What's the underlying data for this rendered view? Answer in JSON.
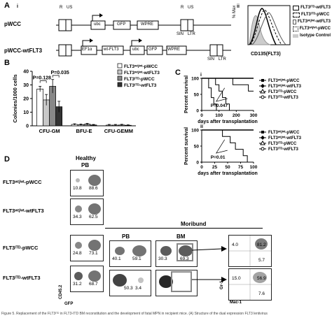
{
  "panelA": {
    "letter": "A",
    "sub_i": "i",
    "sub_ii": "ii",
    "construct1_name": "pWCC",
    "construct2_name": "pWCC-wtFLT3",
    "labels": {
      "R": "R",
      "US": "US",
      "ubc": "ubc",
      "GFP": "GFP",
      "WPRE": "WPRE",
      "SIN": "SIN",
      "LTR": "LTR",
      "EF1a": "EF1α",
      "wtFLT3": "wt-FLT3"
    },
    "hist_ylabel": "% Max",
    "hist_xlabel": "CD135(FLT3)",
    "hist_ticks": [
      "10⁰",
      "10¹",
      "10²",
      "10³",
      "10⁴"
    ],
    "legend": [
      "FLT3ᴵᵀᴰ-wtFLT3",
      "FLT3ᴵᵀᴰ-pWCC",
      "FLT3ʷᵗ/ʷᵗ-wtFLT3",
      "FLT3ʷᵗ/ʷᵗ-pWCC",
      "Isotype Control"
    ]
  },
  "panelB": {
    "letter": "B",
    "chart_data": {
      "type": "bar",
      "categories": [
        "CFU-GM",
        "BFU-E",
        "CFU-GEMM"
      ],
      "series": [
        {
          "name": "FLT3ʷᵗ/ʷᵗ-pWCC",
          "values": [
            27,
            1,
            0.5
          ],
          "errors": [
            2,
            0.5,
            0.5
          ],
          "color": "#ffffff"
        },
        {
          "name": "FLT3ʷᵗ/ʷᵗ-wtFLT3",
          "values": [
            19,
            0.8,
            0.5
          ],
          "errors": [
            4,
            0.5,
            0.5
          ],
          "color": "#c8c8c8"
        },
        {
          "name": "FLT3ᴵᵀᴰ-pWCC",
          "values": [
            29,
            1.2,
            0.6
          ],
          "errors": [
            5,
            0.6,
            0.5
          ],
          "color": "#888888"
        },
        {
          "name": "FLT3ᴵᵀᴰ-wtFLT3",
          "values": [
            14,
            0.6,
            0.4
          ],
          "errors": [
            4,
            0.4,
            0.3
          ],
          "color": "#333333"
        }
      ],
      "ylabel": "Colonies/1000 cells",
      "ylim": [
        0,
        40
      ],
      "yticks": [
        "0",
        "10",
        "20",
        "30",
        "40"
      ],
      "pvalues": [
        "P=0.128",
        "P=0.035"
      ]
    }
  },
  "panelC": {
    "letter": "C",
    "sub_i": "i",
    "sub_ii": "ii",
    "chart_data": [
      {
        "type": "line",
        "xlabel": "days after transplantation",
        "ylabel": "Percent survival",
        "xlim": [
          0,
          300
        ],
        "ylim": [
          0,
          100
        ],
        "xticks": [
          "0",
          "100",
          "200",
          "300"
        ],
        "yticks": [
          "0",
          "50",
          "100"
        ],
        "pvalue": "P=0.047",
        "series": [
          {
            "name": "FLT3ʷᵗ/ʷᵗ-pWCC",
            "x": [
              0,
              300
            ],
            "y": [
              100,
              100
            ]
          },
          {
            "name": "FLT3ʷᵗ/ʷᵗ-wtFLT3",
            "x": [
              0,
              180,
              180,
              270,
              270,
              300
            ],
            "y": [
              100,
              100,
              80,
              80,
              60,
              60
            ]
          },
          {
            "name": "FLT3ᴵᵀᴰ-pWCC",
            "x": [
              0,
              40,
              40,
              55,
              55,
              70,
              70,
              85,
              85
            ],
            "y": [
              100,
              100,
              70,
              70,
              40,
              40,
              20,
              20,
              0
            ]
          },
          {
            "name": "FLT3ᴵᵀᴰ-wtFLT3",
            "x": [
              0,
              80,
              80,
              100,
              100,
              120,
              120,
              140,
              140,
              160,
              160
            ],
            "y": [
              100,
              100,
              80,
              80,
              60,
              60,
              40,
              40,
              20,
              20,
              0
            ]
          }
        ]
      },
      {
        "type": "line",
        "xlabel": "days after transplantation",
        "ylabel": "Percent survival",
        "xlim": [
          0,
          100
        ],
        "ylim": [
          0,
          100
        ],
        "xticks": [
          "0",
          "25",
          "50",
          "75",
          "100"
        ],
        "yticks": [
          "0",
          "50",
          "100"
        ],
        "pvalue": "P=0.01",
        "series": [
          {
            "name": "FLT3ʷᵗ/ʷᵗ-pWCC",
            "x": [
              0,
              100
            ],
            "y": [
              100,
              100
            ]
          },
          {
            "name": "FLT3ʷᵗ/ʷᵗ-wtFLT3",
            "x": [
              0,
              100
            ],
            "y": [
              100,
              100
            ]
          },
          {
            "name": "FLT3ᴵᵀᴰ-pWCC",
            "x": [
              0,
              100
            ],
            "y": [
              100,
              100
            ]
          },
          {
            "name": "FLT3ᴵᵀᴰ-wtFLT3",
            "x": [
              0,
              40,
              40,
              55,
              55,
              65,
              65,
              80,
              80,
              88,
              88
            ],
            "y": [
              100,
              100,
              80,
              80,
              60,
              60,
              40,
              40,
              20,
              20,
              0
            ]
          }
        ]
      }
    ]
  },
  "panelD": {
    "letter": "D",
    "healthy": "Healthy",
    "moribund": "Moribund",
    "pb": "PB",
    "bm": "BM",
    "rows": [
      {
        "label": "FLT3ʷᵗ/ʷᵗ-pWCC",
        "q_left": "10.8",
        "q_right": "88.6"
      },
      {
        "label": "FLT3ʷᵗ/ʷᵗ-wtFLT3",
        "q_left": "34.3",
        "q_right": "62.5"
      },
      {
        "label": "FLT3ᴵᵀᴰ-pWCC",
        "q_left": "24.8",
        "q_right": "73.1"
      },
      {
        "label": "FLT3ᴵᵀᴰ-wtFLT3",
        "q_left": "31.2",
        "q_right": "68.7"
      }
    ],
    "moribund_pb": [
      {
        "q_left": "40.1",
        "q_right": "59.1"
      },
      {
        "q_left": "50.3",
        "q_right": "3.4"
      }
    ],
    "moribund_bm": [
      {
        "q_left": "30.3",
        "q_right": "69.3"
      },
      {
        "q_left": "",
        "q_right": ""
      }
    ],
    "gated": [
      {
        "q_ul": "4.0",
        "q_ur": "81.2",
        "q_lr": "5.7"
      },
      {
        "q_ul": "15.0",
        "q_ur": "56.9",
        "q_lr": "7.6"
      }
    ],
    "axis_y": "CD45.2",
    "axis_x": "GFP",
    "axis_y2": "Gr-1",
    "axis_x2": "Mac-1"
  },
  "caption": "Figure 5. Replacement of the FLT3ᴵᵀᴰ in FLT3-ITD BM reconstitution and the development of fatal MPN in recipient mice. (A) Structure of the dual expression FLT3 lentivirus"
}
